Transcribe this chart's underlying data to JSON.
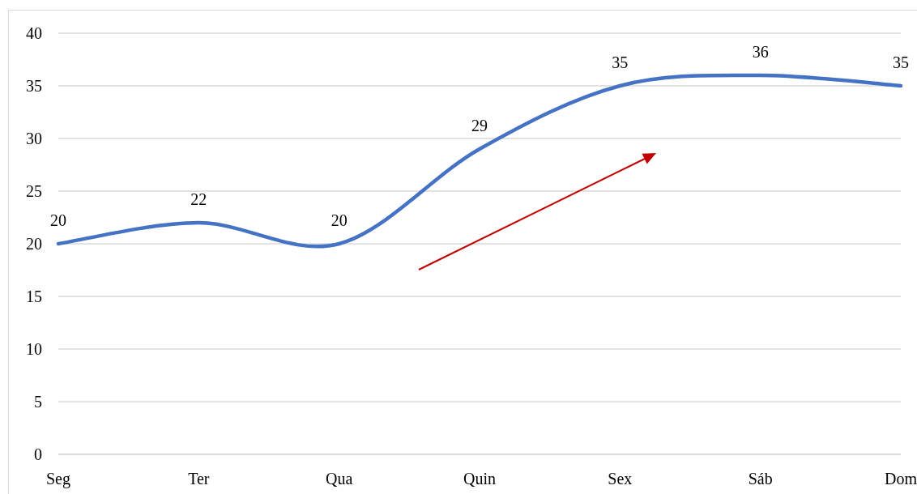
{
  "chart_data": {
    "type": "line",
    "categories": [
      "Seg",
      "Ter",
      "Qua",
      "Quin",
      "Sex",
      "Sáb",
      "Dom"
    ],
    "series": [
      {
        "color": "#4472c4",
        "values": [
          20,
          22,
          20,
          29,
          35,
          36,
          35
        ]
      }
    ],
    "ylim": [
      0,
      40
    ],
    "yticks": [
      0,
      5,
      10,
      15,
      20,
      25,
      30,
      35,
      40
    ],
    "grid": "y",
    "data_labels": true
  }
}
